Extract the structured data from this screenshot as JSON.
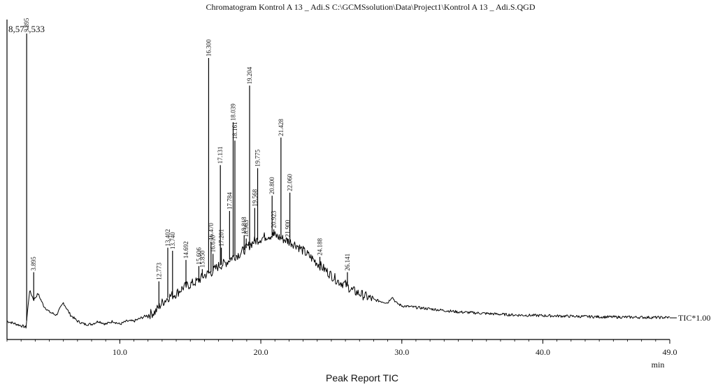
{
  "chart_data": {
    "type": "line",
    "title": "Chromatogram Kontrol  A 13 _ Adi.S C:\\GCMSsolution\\Data\\Project1\\Kontrol  A 13 _ Adi.S.QGD",
    "footer": "Peak Report TIC",
    "max_intensity_label": "8,577,533",
    "trace_label": "TIC*1.00",
    "xlabel": "min",
    "ylabel": "",
    "x_ticks": [
      "10.0",
      "20.0",
      "30.0",
      "40.0",
      "49.0"
    ],
    "xlim": [
      2.0,
      49.0
    ],
    "ylim": [
      0,
      100
    ],
    "baseline_points": [
      [
        2.0,
        6
      ],
      [
        3.35,
        4
      ],
      [
        3.6,
        16
      ],
      [
        3.9,
        13
      ],
      [
        4.2,
        15
      ],
      [
        4.6,
        11
      ],
      [
        5.0,
        9
      ],
      [
        5.5,
        8
      ],
      [
        6.0,
        12
      ],
      [
        6.5,
        8
      ],
      [
        7.0,
        6
      ],
      [
        7.5,
        5
      ],
      [
        8.0,
        5
      ],
      [
        8.5,
        6
      ],
      [
        9.0,
        5
      ],
      [
        9.5,
        6
      ],
      [
        10.0,
        5
      ],
      [
        10.5,
        6
      ],
      [
        11.0,
        6
      ],
      [
        11.5,
        7
      ],
      [
        12.0,
        8
      ],
      [
        12.5,
        9
      ],
      [
        13.0,
        12
      ],
      [
        13.5,
        14
      ],
      [
        14.0,
        15
      ],
      [
        14.5,
        17
      ],
      [
        15.0,
        18
      ],
      [
        15.5,
        19
      ],
      [
        16.0,
        21
      ],
      [
        16.5,
        22
      ],
      [
        17.0,
        24
      ],
      [
        17.5,
        25
      ],
      [
        18.0,
        27
      ],
      [
        18.5,
        28
      ],
      [
        19.0,
        30
      ],
      [
        19.5,
        32
      ],
      [
        20.0,
        33
      ],
      [
        20.5,
        34
      ],
      [
        21.0,
        34
      ],
      [
        21.5,
        33
      ],
      [
        22.0,
        32
      ],
      [
        22.5,
        31
      ],
      [
        23.0,
        29
      ],
      [
        23.5,
        27
      ],
      [
        24.0,
        25
      ],
      [
        24.5,
        23
      ],
      [
        25.0,
        21
      ],
      [
        25.5,
        19
      ],
      [
        26.0,
        18
      ],
      [
        26.5,
        16
      ],
      [
        27.0,
        15
      ],
      [
        27.5,
        14
      ],
      [
        28.0,
        13
      ],
      [
        29.0,
        12
      ],
      [
        29.3,
        14
      ],
      [
        29.6,
        12
      ],
      [
        30.0,
        11
      ],
      [
        32.0,
        10
      ],
      [
        34.0,
        9
      ],
      [
        36.0,
        8.5
      ],
      [
        38.0,
        8
      ],
      [
        40.0,
        7.8
      ],
      [
        42.0,
        7.6
      ],
      [
        44.0,
        7.4
      ],
      [
        46.0,
        7.3
      ],
      [
        48.0,
        7.2
      ],
      [
        49.0,
        7.2
      ]
    ],
    "peaks": [
      {
        "label": "3.395",
        "rt": 3.395,
        "height": 100
      },
      {
        "label": "3.895",
        "rt": 3.895,
        "height": 22
      },
      {
        "label": "12.773",
        "rt": 12.773,
        "height": 19
      },
      {
        "label": "13.402",
        "rt": 13.402,
        "height": 30
      },
      {
        "label": "13.740",
        "rt": 13.74,
        "height": 29
      },
      {
        "label": "14.692",
        "rt": 14.692,
        "height": 26
      },
      {
        "label": "15.606",
        "rt": 15.606,
        "height": 24
      },
      {
        "label": "15.850",
        "rt": 15.85,
        "height": 23
      },
      {
        "label": "16.300",
        "rt": 16.3,
        "height": 92
      },
      {
        "label": "16.470",
        "rt": 16.47,
        "height": 32
      },
      {
        "label": "16.610",
        "rt": 16.61,
        "height": 28
      },
      {
        "label": "17.131",
        "rt": 17.131,
        "height": 57
      },
      {
        "label": "17.201",
        "rt": 17.201,
        "height": 30
      },
      {
        "label": "17.784",
        "rt": 17.784,
        "height": 42
      },
      {
        "label": "18.039",
        "rt": 18.039,
        "height": 71
      },
      {
        "label": "18.161",
        "rt": 18.161,
        "height": 65
      },
      {
        "label": "18.818",
        "rt": 18.818,
        "height": 34
      },
      {
        "label": "18.963",
        "rt": 18.963,
        "height": 33
      },
      {
        "label": "19.204",
        "rt": 19.204,
        "height": 83
      },
      {
        "label": "19.568",
        "rt": 19.568,
        "height": 43
      },
      {
        "label": "19.775",
        "rt": 19.775,
        "height": 56
      },
      {
        "label": "20.800",
        "rt": 20.8,
        "height": 47
      },
      {
        "label": "20.923",
        "rt": 20.923,
        "height": 36
      },
      {
        "label": "21.428",
        "rt": 21.428,
        "height": 66
      },
      {
        "label": "21.900",
        "rt": 21.9,
        "height": 33
      },
      {
        "label": "22.060",
        "rt": 22.06,
        "height": 48
      },
      {
        "label": "24.188",
        "rt": 24.188,
        "height": 27
      },
      {
        "label": "26.141",
        "rt": 26.141,
        "height": 22
      }
    ]
  }
}
